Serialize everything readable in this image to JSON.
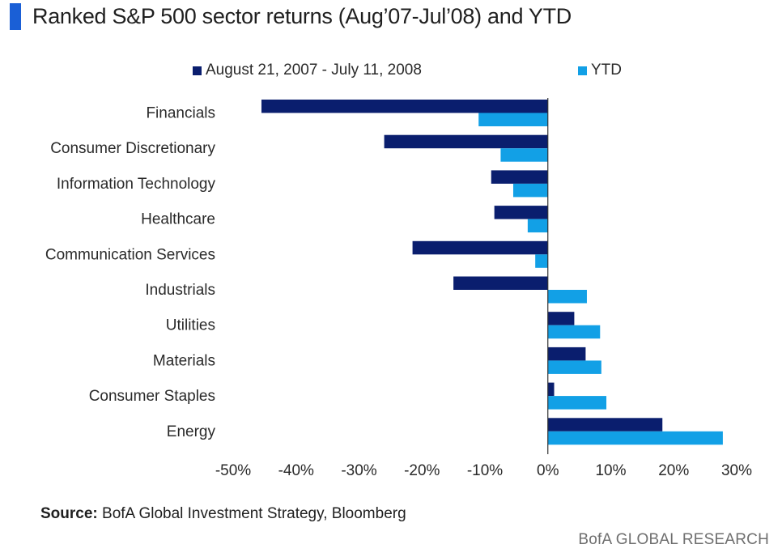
{
  "title": "Ranked S&P 500 sector returns (Aug’07-Jul’08) and YTD",
  "source_label": "Source:",
  "source_text": " BofA Global Investment Strategy, Bloomberg",
  "brand": "BofA GLOBAL RESEARCH",
  "colors": {
    "accent": "#1a5fd6",
    "series1": "#0a1e6e",
    "series2": "#12a0e6"
  },
  "chart_data": {
    "type": "bar",
    "orientation": "horizontal",
    "categories": [
      "Financials",
      "Consumer Discretionary",
      "Information Technology",
      "Healthcare",
      "Communication Services",
      "Industrials",
      "Utilities",
      "Materials",
      "Consumer Staples",
      "Energy"
    ],
    "series": [
      {
        "name": "August 21, 2007 - July 11, 2008",
        "color": "#0a1e6e",
        "values": [
          -45.5,
          -26,
          -9,
          -8.5,
          -21.5,
          -15,
          4.2,
          6,
          1,
          18.2
        ]
      },
      {
        "name": "YTD",
        "color": "#12a0e6",
        "values": [
          -11,
          -7.5,
          -5.5,
          -3.2,
          -2,
          6.2,
          8.3,
          8.5,
          9.3,
          27.8
        ]
      }
    ],
    "xlim": [
      -50,
      30
    ],
    "xticks": [
      -50,
      -40,
      -30,
      -20,
      -10,
      0,
      10,
      20,
      30
    ],
    "xtick_labels": [
      "-50%",
      "-40%",
      "-30%",
      "-20%",
      "-10%",
      "0%",
      "10%",
      "20%",
      "30%"
    ],
    "legend_position": "top",
    "grid": false,
    "xlabel": "",
    "ylabel": ""
  }
}
